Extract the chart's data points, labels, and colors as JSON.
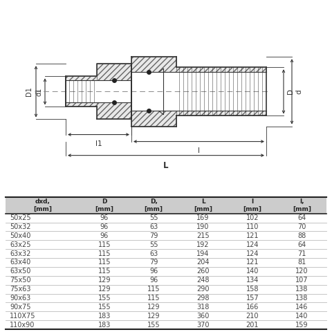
{
  "rows": [
    [
      "50x25",
      "96",
      "55",
      "169",
      "102",
      "64"
    ],
    [
      "50x32",
      "96",
      "63",
      "190",
      "110",
      "70"
    ],
    [
      "50x40",
      "96",
      "79",
      "215",
      "121",
      "88"
    ],
    [
      "63x25",
      "115",
      "55",
      "192",
      "124",
      "64"
    ],
    [
      "63x32",
      "115",
      "63",
      "194",
      "124",
      "71"
    ],
    [
      "63x40",
      "115",
      "79",
      "204",
      "121",
      "81"
    ],
    [
      "63x50",
      "115",
      "96",
      "260",
      "140",
      "120"
    ],
    [
      "75x50",
      "129",
      "96",
      "248",
      "134",
      "107"
    ],
    [
      "75x63",
      "129",
      "115",
      "290",
      "158",
      "138"
    ],
    [
      "90x63",
      "155",
      "115",
      "298",
      "157",
      "138"
    ],
    [
      "90x75",
      "155",
      "129",
      "318",
      "166",
      "146"
    ],
    [
      "110X75",
      "183",
      "129",
      "360",
      "210",
      "140"
    ],
    [
      "110x90",
      "183",
      "155",
      "370",
      "201",
      "159"
    ]
  ],
  "header_bg": "#cccccc",
  "row_line_color": "#bbbbbb",
  "text_color": "#444444",
  "header_text_color": "#222222",
  "border_color": "#222222",
  "background_color": "#ffffff",
  "lc": "#333333",
  "dim_color": "#333333",
  "hatch_fc": "#e8e8e8",
  "hatch_ec": "#666666",
  "centerline_color": "#888888"
}
